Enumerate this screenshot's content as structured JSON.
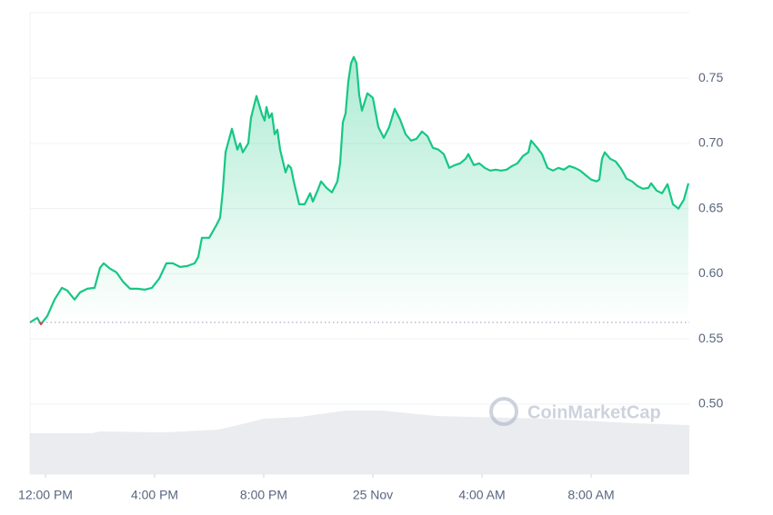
{
  "chart_data": {
    "type": "line",
    "watermark": "CoinMarketCap",
    "x": [
      11.433,
      11.7,
      11.833,
      12.067,
      12.333,
      12.6,
      12.8,
      13.067,
      13.267,
      13.533,
      13.8,
      14.0,
      14.133,
      14.367,
      14.6,
      14.833,
      15.1,
      15.367,
      15.633,
      15.9,
      16.167,
      16.433,
      16.667,
      16.933,
      17.2,
      17.467,
      17.6,
      17.733,
      18.0,
      18.267,
      18.4,
      18.5,
      18.6,
      18.833,
      19.033,
      19.133,
      19.233,
      19.433,
      19.533,
      19.733,
      19.933,
      20.033,
      20.1,
      20.2,
      20.3,
      20.4,
      20.5,
      20.6,
      20.8,
      20.9,
      21.0,
      21.1,
      21.3,
      21.5,
      21.7,
      21.8,
      22.0,
      22.1,
      22.3,
      22.5,
      22.7,
      22.8,
      22.9,
      23.0,
      23.1,
      23.2,
      23.3,
      23.4,
      23.5,
      23.6,
      23.8,
      24.0,
      24.2,
      24.4,
      24.6,
      24.8,
      25.0,
      25.2,
      25.4,
      25.6,
      25.8,
      26.0,
      26.2,
      26.4,
      26.6,
      26.8,
      27.0,
      27.2,
      27.4,
      27.5,
      27.7,
      27.9,
      28.1,
      28.3,
      28.5,
      28.7,
      28.9,
      29.1,
      29.3,
      29.5,
      29.7,
      29.8,
      30.0,
      30.2,
      30.4,
      30.6,
      30.8,
      31.0,
      31.2,
      31.4,
      31.6,
      31.8,
      32.0,
      32.2,
      32.3,
      32.4,
      32.5,
      32.7,
      32.9,
      33.1,
      33.3,
      33.5,
      33.7,
      33.9,
      34.1,
      34.2,
      34.4,
      34.6,
      34.8,
      35.0,
      35.2,
      35.4,
      35.567
    ],
    "series": [
      {
        "color": "#16c784",
        "down_color": "#ea3943",
        "values": [
          0.5627,
          0.5662,
          0.5613,
          0.5676,
          0.5802,
          0.5892,
          0.5871,
          0.5802,
          0.5857,
          0.5885,
          0.5892,
          0.6046,
          0.608,
          0.6039,
          0.6011,
          0.5941,
          0.5885,
          0.5885,
          0.5878,
          0.5892,
          0.5962,
          0.608,
          0.608,
          0.6052,
          0.6059,
          0.608,
          0.6129,
          0.6276,
          0.6276,
          0.6373,
          0.6429,
          0.6638,
          0.6931,
          0.7112,
          0.6952,
          0.7,
          0.6931,
          0.7,
          0.7196,
          0.7363,
          0.7223,
          0.7175,
          0.7279,
          0.7196,
          0.723,
          0.707,
          0.7105,
          0.6952,
          0.6777,
          0.6833,
          0.6812,
          0.6708,
          0.6533,
          0.6533,
          0.6617,
          0.6554,
          0.6652,
          0.6708,
          0.6659,
          0.6624,
          0.6708,
          0.6847,
          0.7161,
          0.723,
          0.7474,
          0.7614,
          0.7663,
          0.7614,
          0.737,
          0.7251,
          0.7384,
          0.7349,
          0.7126,
          0.7042,
          0.7126,
          0.7265,
          0.7182,
          0.707,
          0.7021,
          0.7035,
          0.7091,
          0.7056,
          0.6966,
          0.6952,
          0.6917,
          0.6812,
          0.6833,
          0.6847,
          0.6882,
          0.6917,
          0.6833,
          0.6847,
          0.6812,
          0.6791,
          0.6798,
          0.6791,
          0.6798,
          0.6826,
          0.6847,
          0.6903,
          0.6931,
          0.7021,
          0.6972,
          0.6917,
          0.6812,
          0.6791,
          0.6812,
          0.6798,
          0.6826,
          0.6812,
          0.6791,
          0.6756,
          0.6722,
          0.6708,
          0.6722,
          0.6882,
          0.6931,
          0.6882,
          0.6861,
          0.6805,
          0.6729,
          0.6708,
          0.6673,
          0.6652,
          0.6659,
          0.6694,
          0.6638,
          0.6617,
          0.6687,
          0.6533,
          0.6499,
          0.6568,
          0.6694
        ]
      }
    ],
    "baseline": 0.5627,
    "xlim": [
      11.433,
      35.6
    ],
    "xticks": [
      {
        "value": 12,
        "label": "12:00 PM"
      },
      {
        "value": 16,
        "label": "4:00 PM"
      },
      {
        "value": 20,
        "label": "8:00 PM"
      },
      {
        "value": 24,
        "label": "25 Nov"
      },
      {
        "value": 28,
        "label": "4:00 AM"
      },
      {
        "value": 32,
        "label": "8:00 AM"
      }
    ],
    "ylim": [
      0.4463,
      0.8002
    ],
    "yticks": [
      {
        "value": 0.5,
        "label": "0.50"
      },
      0.55,
      {
        "value": 0.6,
        "label": "0.60"
      },
      0.65,
      {
        "value": 0.7,
        "label": "0.70"
      },
      0.75
    ],
    "grid": true
  }
}
